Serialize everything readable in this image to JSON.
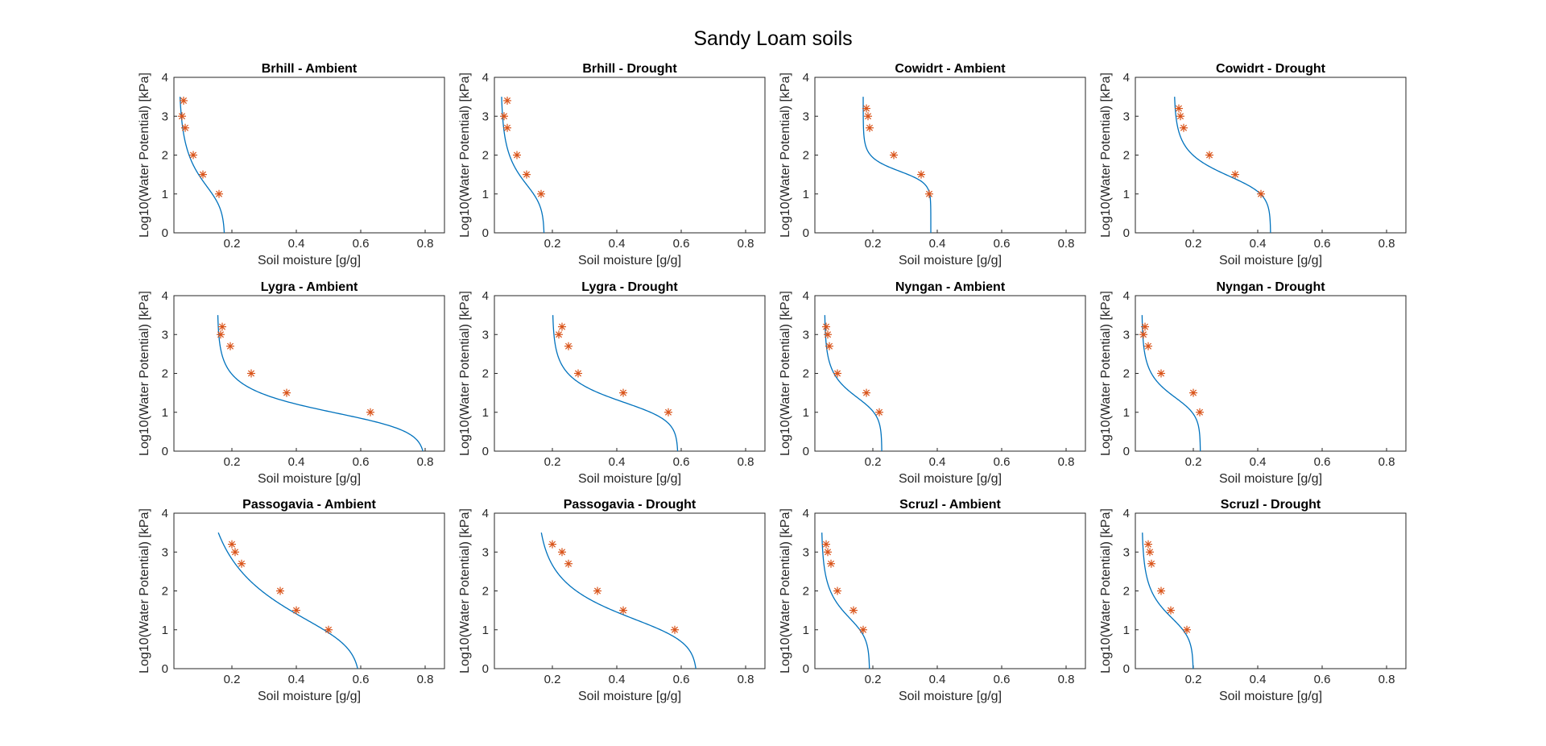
{
  "figure": {
    "title": "Sandy Loam soils",
    "xlabel": "Soil moisture [g/g]",
    "ylabel": "Log10(Water Potential) [kPa]",
    "xlim": [
      0.02,
      0.86
    ],
    "ylim": [
      0,
      4
    ],
    "xticks": [
      0.2,
      0.4,
      0.6,
      0.8
    ],
    "xtick_labels": [
      "0.2",
      "0.4",
      "0.6",
      "0.8"
    ],
    "yticks": [
      0,
      1,
      2,
      3,
      4
    ],
    "ytick_labels": [
      "0",
      "1",
      "2",
      "3",
      "4"
    ],
    "curve_color": "#0072BD",
    "marker_color": "#D95319"
  },
  "chart_data": [
    {
      "type": "scatter",
      "title": "Brhill - Ambient",
      "x": [
        0.05,
        0.045,
        0.055,
        0.08,
        0.11,
        0.16
      ],
      "y": [
        3.4,
        3.0,
        2.7,
        2.0,
        1.5,
        1.0
      ],
      "fit": {
        "theta_r": 0.035,
        "theta_s": 0.178,
        "alpha": 0.12,
        "n": 1.6
      }
    },
    {
      "type": "scatter",
      "title": "Brhill - Drought",
      "x": [
        0.06,
        0.05,
        0.06,
        0.09,
        0.12,
        0.165
      ],
      "y": [
        3.4,
        3.0,
        2.7,
        2.0,
        1.5,
        1.0
      ],
      "fit": {
        "theta_r": 0.04,
        "theta_s": 0.175,
        "alpha": 0.1,
        "n": 1.7
      }
    },
    {
      "type": "scatter",
      "title": "Cowidrt - Ambient",
      "x": [
        0.18,
        0.185,
        0.19,
        0.265,
        0.35,
        0.375
      ],
      "y": [
        3.2,
        3.0,
        2.7,
        2.0,
        1.5,
        1.0
      ],
      "fit": {
        "theta_r": 0.17,
        "theta_s": 0.38,
        "alpha": 0.03,
        "n": 3.0
      }
    },
    {
      "type": "scatter",
      "title": "Cowidrt - Drought",
      "x": [
        0.155,
        0.16,
        0.17,
        0.25,
        0.33,
        0.41
      ],
      "y": [
        3.2,
        3.0,
        2.7,
        2.0,
        1.5,
        1.0
      ],
      "fit": {
        "theta_r": 0.14,
        "theta_s": 0.44,
        "alpha": 0.05,
        "n": 2.0
      }
    },
    {
      "type": "scatter",
      "title": "Lygra - Ambient",
      "x": [
        0.17,
        0.165,
        0.195,
        0.26,
        0.37,
        0.63
      ],
      "y": [
        3.2,
        3.0,
        2.7,
        2.0,
        1.5,
        1.0
      ],
      "fit": {
        "theta_r": 0.155,
        "theta_s": 0.8,
        "alpha": 0.15,
        "n": 2.0
      }
    },
    {
      "type": "scatter",
      "title": "Lygra - Drought",
      "x": [
        0.23,
        0.22,
        0.25,
        0.28,
        0.42,
        0.56
      ],
      "y": [
        3.2,
        3.0,
        2.7,
        2.0,
        1.5,
        1.0
      ],
      "fit": {
        "theta_r": 0.2,
        "theta_s": 0.59,
        "alpha": 0.08,
        "n": 2.0
      }
    },
    {
      "type": "scatter",
      "title": "Nyngan - Ambient",
      "x": [
        0.055,
        0.06,
        0.065,
        0.09,
        0.18,
        0.22
      ],
      "y": [
        3.2,
        3.0,
        2.7,
        2.0,
        1.5,
        1.0
      ],
      "fit": {
        "theta_r": 0.05,
        "theta_s": 0.228,
        "alpha": 0.06,
        "n": 2.0
      }
    },
    {
      "type": "scatter",
      "title": "Nyngan - Drought",
      "x": [
        0.05,
        0.045,
        0.06,
        0.1,
        0.2,
        0.22
      ],
      "y": [
        3.2,
        3.0,
        2.7,
        2.0,
        1.5,
        1.0
      ],
      "fit": {
        "theta_r": 0.04,
        "theta_s": 0.222,
        "alpha": 0.06,
        "n": 2.0
      }
    },
    {
      "type": "scatter",
      "title": "Passogavia - Ambient",
      "x": [
        0.2,
        0.21,
        0.23,
        0.35,
        0.4,
        0.5
      ],
      "y": [
        3.2,
        3.0,
        2.7,
        2.0,
        1.5,
        1.0
      ],
      "fit": {
        "theta_r": 0.1,
        "theta_s": 0.6,
        "alpha": 0.15,
        "n": 1.35
      }
    },
    {
      "type": "scatter",
      "title": "Passogavia - Drought",
      "x": [
        0.2,
        0.23,
        0.25,
        0.34,
        0.42,
        0.58
      ],
      "y": [
        3.2,
        3.0,
        2.7,
        2.0,
        1.5,
        1.0
      ],
      "fit": {
        "theta_r": 0.15,
        "theta_s": 0.65,
        "alpha": 0.1,
        "n": 1.6
      }
    },
    {
      "type": "scatter",
      "title": "Scruzl - Ambient",
      "x": [
        0.055,
        0.06,
        0.07,
        0.09,
        0.14,
        0.17
      ],
      "y": [
        3.2,
        3.0,
        2.7,
        2.0,
        1.5,
        1.0
      ],
      "fit": {
        "theta_r": 0.04,
        "theta_s": 0.19,
        "alpha": 0.08,
        "n": 1.8
      }
    },
    {
      "type": "scatter",
      "title": "Scruzl - Drought",
      "x": [
        0.06,
        0.065,
        0.07,
        0.1,
        0.13,
        0.18
      ],
      "y": [
        3.2,
        3.0,
        2.7,
        2.0,
        1.5,
        1.0
      ],
      "fit": {
        "theta_r": 0.04,
        "theta_s": 0.2,
        "alpha": 0.08,
        "n": 1.8
      }
    }
  ]
}
